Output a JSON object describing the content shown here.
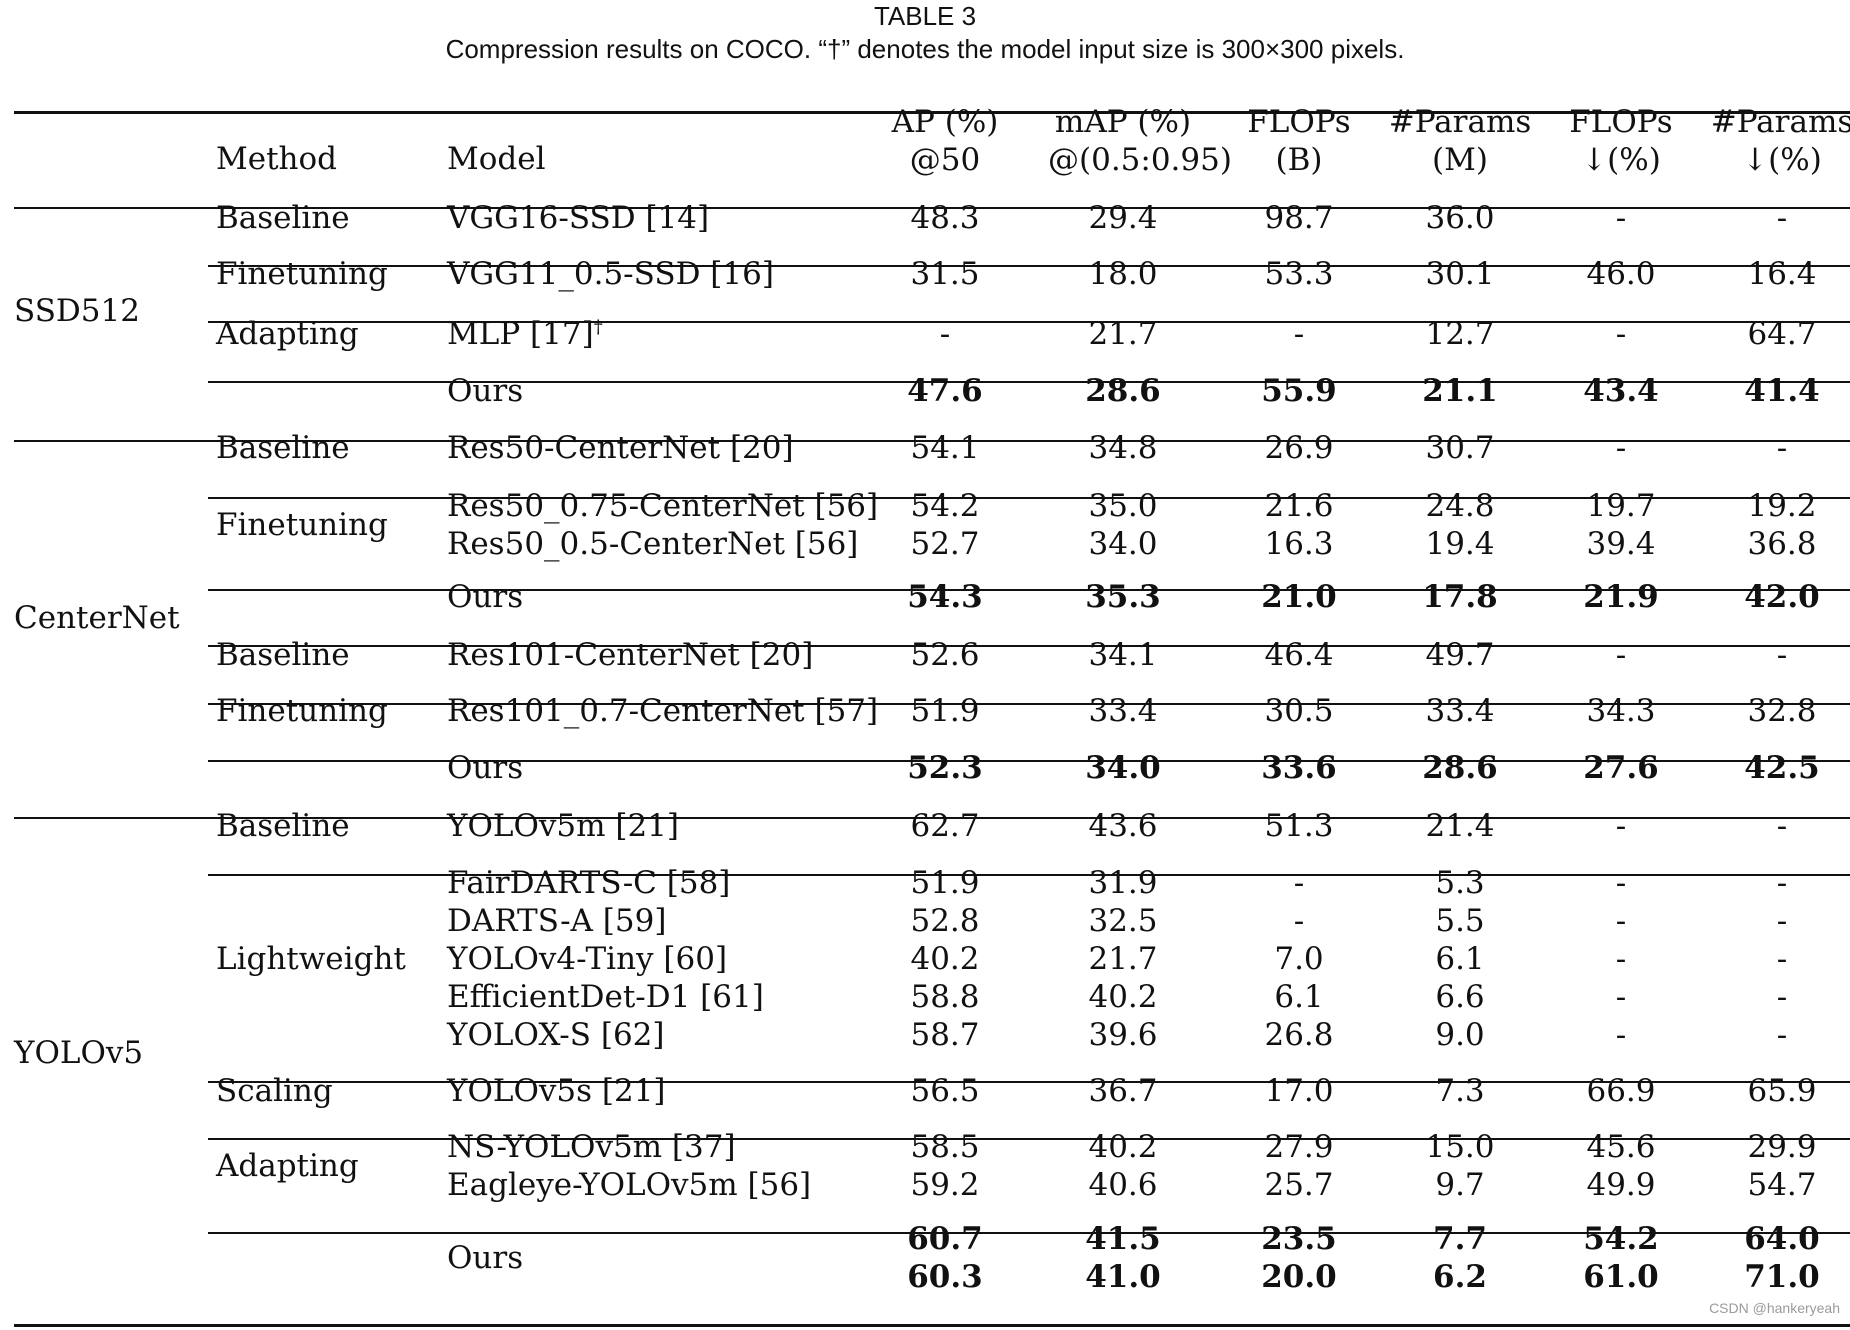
{
  "caption": {
    "label": "TABLE 3",
    "text": "Compression results on COCO. “†” denotes the model input size is 300×300 pixels."
  },
  "columns": [
    {
      "line1": "Method",
      "line2": ""
    },
    {
      "line1": "Model",
      "line2": ""
    },
    {
      "line1": "AP (%)",
      "line2": "@50"
    },
    {
      "line1": "mAP (%)",
      "line2": "@(0.5:0.95)"
    },
    {
      "line1": "FLOPs",
      "line2": "(B)"
    },
    {
      "line1": "#Params",
      "line2": "(M)"
    },
    {
      "line1": "FLOPs",
      "line2": "↓(%)"
    },
    {
      "line1": "#Params",
      "line2": "↓(%)"
    }
  ],
  "groups": [
    "SSD512",
    "CenterNet",
    "YOLOv5"
  ],
  "sections": [
    {
      "method": "Baseline",
      "rows": [
        {
          "model": "VGG16-SSD [14]",
          "values": [
            "48.3",
            "29.4",
            "98.7",
            "36.0",
            "-",
            "-"
          ]
        }
      ]
    },
    {
      "method": "Finetuning",
      "rows": [
        {
          "model": "VGG11_0.5-SSD [16]",
          "values": [
            "31.5",
            "18.0",
            "53.3",
            "30.1",
            "46.0",
            "16.4"
          ]
        }
      ]
    },
    {
      "method": "Adapting",
      "rows": [
        {
          "model": "MLP [17]",
          "mark": "†",
          "values": [
            "-",
            "21.7",
            "-",
            "12.7",
            "-",
            "64.7"
          ]
        }
      ]
    },
    {
      "method": "",
      "rows": [
        {
          "model": "Ours",
          "values": [
            "47.6",
            "28.6",
            "55.9",
            "21.1",
            "43.4",
            "41.4"
          ]
        }
      ]
    },
    {
      "method": "Baseline",
      "rows": [
        {
          "model": "Res50-CenterNet [20]",
          "values": [
            "54.1",
            "34.8",
            "26.9",
            "30.7",
            "-",
            "-"
          ]
        }
      ]
    },
    {
      "method": "Finetuning",
      "rows": [
        {
          "model": "Res50_0.75-CenterNet [56]",
          "values": [
            "54.2",
            "35.0",
            "21.6",
            "24.8",
            "19.7",
            "19.2"
          ]
        },
        {
          "model": "Res50_0.5-CenterNet [56]",
          "values": [
            "52.7",
            "34.0",
            "16.3",
            "19.4",
            "39.4",
            "36.8"
          ]
        }
      ]
    },
    {
      "method": "",
      "rows": [
        {
          "model": "Ours",
          "values": [
            "54.3",
            "35.3",
            "21.0",
            "17.8",
            "21.9",
            "42.0"
          ]
        }
      ]
    },
    {
      "method": "Baseline",
      "rows": [
        {
          "model": "Res101-CenterNet [20]",
          "values": [
            "52.6",
            "34.1",
            "46.4",
            "49.7",
            "-",
            "-"
          ]
        }
      ]
    },
    {
      "method": "Finetuning",
      "rows": [
        {
          "model": "Res101_0.7-CenterNet [57]",
          "values": [
            "51.9",
            "33.4",
            "30.5",
            "33.4",
            "34.3",
            "32.8"
          ]
        }
      ]
    },
    {
      "method": "",
      "rows": [
        {
          "model": "Ours",
          "values": [
            "52.3",
            "34.0",
            "33.6",
            "28.6",
            "27.6",
            "42.5"
          ]
        }
      ]
    },
    {
      "method": "Baseline",
      "rows": [
        {
          "model": "YOLOv5m [21]",
          "values": [
            "62.7",
            "43.6",
            "51.3",
            "21.4",
            "-",
            "-"
          ]
        }
      ]
    },
    {
      "method": "Lightweight",
      "rows": [
        {
          "model": "FairDARTS-C [58]",
          "values": [
            "51.9",
            "31.9",
            "-",
            "5.3",
            "-",
            "-"
          ]
        },
        {
          "model": "DARTS-A [59]",
          "values": [
            "52.8",
            "32.5",
            "-",
            "5.5",
            "-",
            "-"
          ]
        },
        {
          "model": "YOLOv4-Tiny [60]",
          "values": [
            "40.2",
            "21.7",
            "7.0",
            "6.1",
            "-",
            "-"
          ]
        },
        {
          "model": "EfficientDet-D1 [61]",
          "values": [
            "58.8",
            "40.2",
            "6.1",
            "6.6",
            "-",
            "-"
          ]
        },
        {
          "model": "YOLOX-S [62]",
          "values": [
            "58.7",
            "39.6",
            "26.8",
            "9.0",
            "-",
            "-"
          ]
        }
      ]
    },
    {
      "method": "Scaling",
      "rows": [
        {
          "model": "YOLOv5s [21]",
          "values": [
            "56.5",
            "36.7",
            "17.0",
            "7.3",
            "66.9",
            "65.9"
          ]
        }
      ]
    },
    {
      "method": "Adapting",
      "rows": [
        {
          "model": "NS-YOLOv5m [37]",
          "values": [
            "58.5",
            "40.2",
            "27.9",
            "15.0",
            "45.6",
            "29.9"
          ]
        },
        {
          "model": "Eagleye-YOLOv5m [56]",
          "values": [
            "59.2",
            "40.6",
            "25.7",
            "9.7",
            "49.9",
            "54.7"
          ]
        }
      ]
    },
    {
      "method": "",
      "rows": [
        {
          "model": "Ours",
          "values": [
            "60.7",
            "41.5",
            "23.5",
            "7.7",
            "54.2",
            "64.0"
          ]
        },
        {
          "model": "",
          "values": [
            "60.3",
            "41.0",
            "20.0",
            "6.2",
            "61.0",
            "71.0"
          ]
        }
      ]
    }
  ],
  "watermark": "CSDN @hankeryeah"
}
